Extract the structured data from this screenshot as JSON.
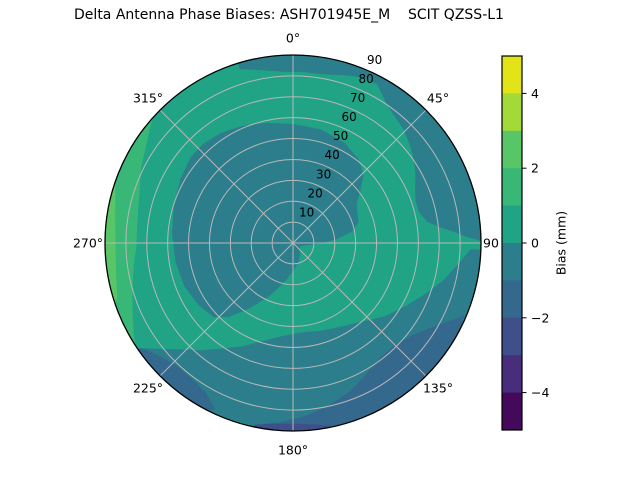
{
  "title": "Delta Antenna Phase Biases: ASH701945E_M    SCIT QZSS-L1",
  "chart_data": {
    "type": "polar_contour",
    "title": "Delta Antenna Phase Biases: ASH701945E_M    SCIT QZSS-L1",
    "angular_ticks": [
      {
        "angle": 0,
        "label": "0°"
      },
      {
        "angle": 45,
        "label": "45°"
      },
      {
        "angle": 90,
        "label": "90"
      },
      {
        "angle": 135,
        "label": "135°"
      },
      {
        "angle": 180,
        "label": "180°"
      },
      {
        "angle": 225,
        "label": "225°"
      },
      {
        "angle": 270,
        "label": "270°"
      },
      {
        "angle": 315,
        "label": "315°"
      }
    ],
    "radial_ticks": {
      "values": [
        10,
        20,
        30,
        40,
        50,
        60,
        70,
        80,
        90
      ],
      "labels": [
        "10",
        "20",
        "30",
        "40",
        "50",
        "60",
        "70",
        "80",
        "90"
      ],
      "max": 90,
      "label_angle_deg": 24
    },
    "levels": [
      -5,
      -4,
      -3,
      -2,
      -1,
      0,
      1,
      2,
      3,
      4,
      5
    ],
    "level_colors": [
      "#45095c",
      "#472d7c",
      "#3e4f8a",
      "#35688d",
      "#2c7e8c",
      "#21a386",
      "#38b777",
      "#58c667",
      "#a3da38",
      "#e3e418"
    ],
    "base_level_index": 5,
    "grid_color": "#b8b8b8",
    "outline_color": "#000000",
    "colorbar": {
      "label": "Bias (mm)",
      "min": -5,
      "max": 5,
      "ticks": [
        {
          "value": 4,
          "label": "4"
        },
        {
          "value": 2,
          "label": "2"
        },
        {
          "value": 0,
          "label": "0"
        },
        {
          "value": -2,
          "label": "−2"
        },
        {
          "value": -4,
          "label": "−4"
        }
      ]
    },
    "regions": [
      {
        "name": "region-bias-neg1-0-central-blob",
        "range": "-1 to 0",
        "level_index": 4,
        "points": [
          [
            0,
            57
          ],
          [
            14,
            56
          ],
          [
            27,
            54
          ],
          [
            38,
            51
          ],
          [
            46,
            47
          ],
          [
            52,
            41
          ],
          [
            58,
            36
          ],
          [
            65,
            34
          ],
          [
            72,
            33
          ],
          [
            79,
            29
          ],
          [
            85,
            21
          ],
          [
            91,
            13
          ],
          [
            99,
            7
          ],
          [
            112,
            4
          ],
          [
            128,
            4
          ],
          [
            145,
            6
          ],
          [
            162,
            9
          ],
          [
            178,
            13
          ],
          [
            192,
            19
          ],
          [
            204,
            28
          ],
          [
            214,
            38
          ],
          [
            221,
            47
          ],
          [
            227,
            52
          ],
          [
            236,
            54
          ],
          [
            248,
            56
          ],
          [
            261,
            57
          ],
          [
            274,
            58
          ],
          [
            288,
            60
          ],
          [
            300,
            62
          ],
          [
            310,
            64
          ],
          [
            318,
            64
          ],
          [
            327,
            63
          ],
          [
            337,
            61
          ],
          [
            347,
            59
          ]
        ]
      },
      {
        "name": "region-bias-neg1-0-top-right-band",
        "range": "-1 to 0",
        "level_index": 4,
        "points": [
          [
            343,
            90
          ],
          [
            343,
            87
          ],
          [
            350,
            84
          ],
          [
            357,
            82
          ],
          [
            3,
            82
          ],
          [
            10,
            82
          ],
          [
            17,
            84
          ],
          [
            23,
            86
          ],
          [
            28,
            86
          ],
          [
            33,
            81
          ],
          [
            38,
            78
          ],
          [
            44,
            76
          ],
          [
            50,
            73
          ],
          [
            56,
            70
          ],
          [
            61,
            67
          ],
          [
            66,
            64
          ],
          [
            71,
            62
          ],
          [
            76,
            62
          ],
          [
            81,
            65
          ],
          [
            84,
            71
          ],
          [
            86,
            77
          ],
          [
            88,
            83
          ],
          [
            89,
            88
          ],
          [
            89.5,
            90
          ],
          [
            82,
            90
          ],
          [
            72,
            90
          ],
          [
            62,
            90
          ],
          [
            52,
            90
          ],
          [
            42,
            90
          ],
          [
            32,
            90
          ],
          [
            22,
            90
          ],
          [
            12,
            90
          ],
          [
            2,
            90
          ],
          [
            352,
            90
          ]
        ]
      },
      {
        "name": "region-bias-neg1-0-bottom-band",
        "range": "-1 to 0",
        "level_index": 4,
        "points": [
          [
            92,
            90
          ],
          [
            92,
            85
          ],
          [
            97,
            80
          ],
          [
            104,
            74
          ],
          [
            111,
            68
          ],
          [
            119,
            62
          ],
          [
            129,
            56
          ],
          [
            139,
            50
          ],
          [
            151,
            46
          ],
          [
            163,
            44
          ],
          [
            175,
            43
          ],
          [
            187,
            45
          ],
          [
            197,
            49
          ],
          [
            206,
            55
          ],
          [
            214,
            61
          ],
          [
            221,
            68
          ],
          [
            228,
            76
          ],
          [
            233,
            84
          ],
          [
            236,
            90
          ],
          [
            226,
            90
          ],
          [
            214,
            90
          ],
          [
            202,
            90
          ],
          [
            190,
            90
          ],
          [
            178,
            90
          ],
          [
            166,
            90
          ],
          [
            154,
            90
          ],
          [
            142,
            90
          ],
          [
            130,
            90
          ],
          [
            118,
            90
          ],
          [
            106,
            90
          ],
          [
            96,
            90
          ]
        ]
      },
      {
        "name": "region-bias-neg2-neg1-bottom-right",
        "range": "-2 to -1",
        "level_index": 3,
        "points": [
          [
            113,
            89
          ],
          [
            117,
            83
          ],
          [
            122,
            77
          ],
          [
            128,
            72
          ],
          [
            135,
            69
          ],
          [
            143,
            69
          ],
          [
            151,
            72
          ],
          [
            159,
            76
          ],
          [
            168,
            80
          ],
          [
            176,
            83
          ],
          [
            184,
            86
          ],
          [
            190,
            88
          ],
          [
            191,
            90
          ],
          [
            183,
            90
          ],
          [
            174,
            90
          ],
          [
            165,
            90
          ],
          [
            156,
            90
          ],
          [
            147,
            90
          ],
          [
            138,
            90
          ],
          [
            130,
            90
          ],
          [
            123,
            90
          ],
          [
            117,
            90
          ]
        ]
      },
      {
        "name": "region-bias-neg2-neg1-bottom-left",
        "range": "-2 to -1",
        "level_index": 3,
        "points": [
          [
            205,
            88
          ],
          [
            210,
            83
          ],
          [
            217,
            81
          ],
          [
            224,
            81
          ],
          [
            230,
            84
          ],
          [
            234,
            87
          ],
          [
            236,
            90
          ],
          [
            229,
            90
          ],
          [
            221,
            90
          ],
          [
            213,
            90
          ],
          [
            207,
            90
          ]
        ]
      },
      {
        "name": "region-bias-neg3-neg2-bottom-sliver",
        "range": "-3 to -2",
        "level_index": 2,
        "points": [
          [
            168,
            89.5
          ],
          [
            173,
            87.5
          ],
          [
            179,
            86.5
          ],
          [
            186,
            87
          ],
          [
            191,
            88.5
          ],
          [
            193,
            90
          ],
          [
            186,
            90
          ],
          [
            178,
            90
          ],
          [
            171,
            90
          ]
        ]
      },
      {
        "name": "region-bias-1-2-left-crescent",
        "range": "1 to 2",
        "level_index": 6,
        "points": [
          [
            237,
            90
          ],
          [
            246,
            90
          ],
          [
            256,
            90
          ],
          [
            266,
            90
          ],
          [
            276,
            90
          ],
          [
            286,
            90
          ],
          [
            296,
            90
          ],
          [
            306,
            90
          ],
          [
            312,
            90
          ],
          [
            309,
            88
          ],
          [
            303,
            84
          ],
          [
            296,
            81
          ],
          [
            290,
            78
          ],
          [
            283,
            76
          ],
          [
            276,
            75
          ],
          [
            269,
            75
          ],
          [
            262,
            77
          ],
          [
            254,
            80
          ],
          [
            246,
            84
          ],
          [
            240,
            88
          ]
        ]
      },
      {
        "name": "region-bias-2-3-left-rim",
        "range": "2 to 3",
        "level_index": 7,
        "points": [
          [
            251,
            90
          ],
          [
            259,
            90
          ],
          [
            268,
            90
          ],
          [
            277,
            90
          ],
          [
            285,
            90
          ],
          [
            289,
            90
          ],
          [
            285,
            88
          ],
          [
            278,
            86
          ],
          [
            269,
            85
          ],
          [
            260,
            86
          ],
          [
            253,
            88
          ]
        ]
      }
    ]
  }
}
